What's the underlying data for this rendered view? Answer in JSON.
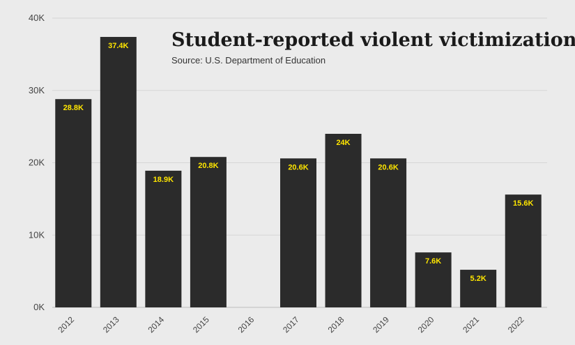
{
  "colors": {
    "background": "#ebebeb",
    "bar": "#2b2b2b",
    "label": "#ffe600",
    "grid": "#d6d6d6"
  },
  "chart_data": {
    "type": "bar",
    "title": "Student-reported violent victimization",
    "subtitle": "Source: U.S. Department of Education",
    "xlabel": "",
    "ylabel": "",
    "ylim": [
      0,
      40000
    ],
    "yticks": [
      0,
      10000,
      20000,
      30000,
      40000
    ],
    "ytick_labels": [
      "0K",
      "10K",
      "20K",
      "30K",
      "40K"
    ],
    "grid": true,
    "categories": [
      "2012",
      "2013",
      "2014",
      "2015",
      "2016",
      "2017",
      "2018",
      "2019",
      "2020",
      "2021",
      "2022"
    ],
    "values": [
      28800,
      37400,
      18900,
      20800,
      null,
      20600,
      24000,
      20600,
      7600,
      5200,
      15600
    ],
    "data_labels": [
      "28.8K",
      "37.4K",
      "18.9K",
      "20.8K",
      "",
      "20.6K",
      "24K",
      "20.6K",
      "7.6K",
      "5.2K",
      "15.6K"
    ]
  }
}
